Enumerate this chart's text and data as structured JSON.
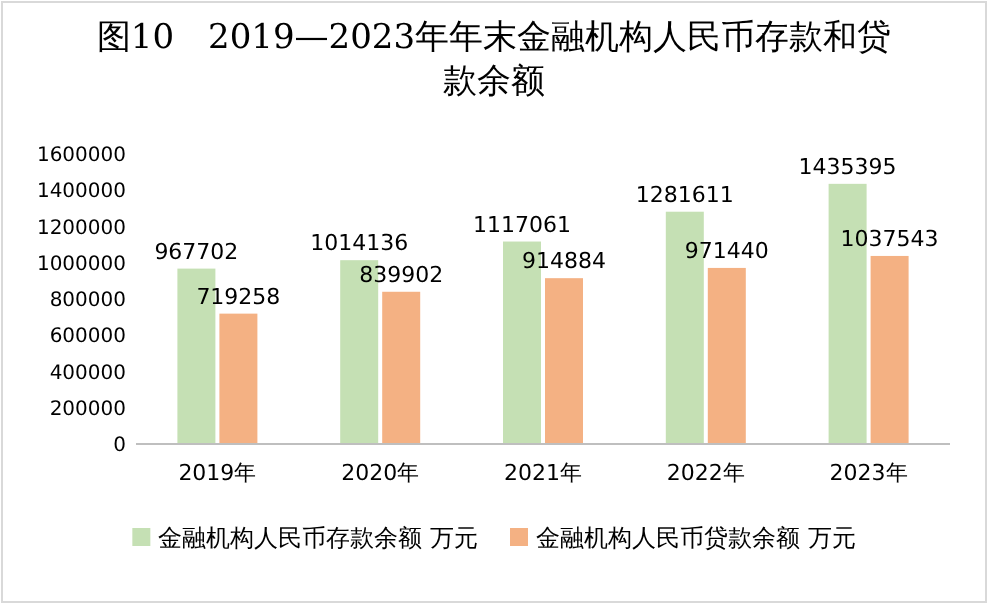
{
  "chart_data": {
    "type": "bar",
    "title": "图10　2019—2023年年末金融机构人民币存款和贷款余额",
    "categories": [
      "2019年",
      "2020年",
      "2021年",
      "2022年",
      "2023年"
    ],
    "series": [
      {
        "name": "金融机构人民币存款余额 万元",
        "color": "#c5e0b4",
        "values": [
          967702,
          1014136,
          1117061,
          1281611,
          1435395
        ]
      },
      {
        "name": "金融机构人民币贷款余额 万元",
        "color": "#f4b183",
        "values": [
          719258,
          839902,
          914884,
          971440,
          1037543
        ]
      }
    ],
    "ylim": [
      0,
      1600000
    ],
    "yticks": [
      0,
      200000,
      400000,
      600000,
      800000,
      1000000,
      1200000,
      1400000,
      1600000
    ],
    "data_labels": true,
    "legend": "bottom"
  }
}
